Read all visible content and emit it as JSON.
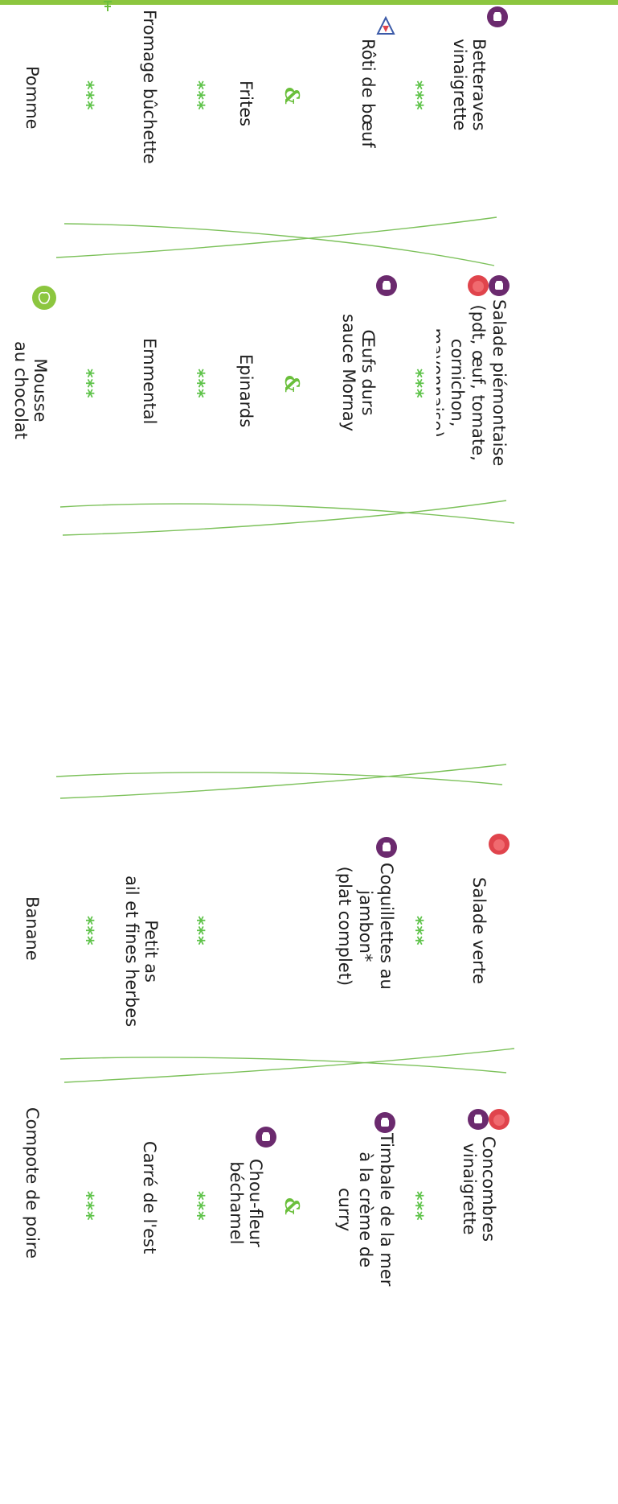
{
  "colors": {
    "accent_green": "#8cc63f",
    "star_green": "#5fc34a",
    "icon_purple": "#6b2a6e",
    "icon_red": "#e0444c",
    "separator_green": "#7cc15a"
  },
  "icons": [
    "chef-hat-icon",
    "tomato-icon",
    "flag-icon",
    "apple-icon"
  ],
  "separator": "***",
  "ampersand": "&",
  "days": [
    {
      "starter": [
        "Betteraves",
        "vinaigrette"
      ],
      "main": [
        "Rôti de bœuf"
      ],
      "side": [
        "Frites"
      ],
      "dairy": [
        "Fromage bûchette"
      ],
      "dessert": [
        "Pomme"
      ]
    },
    {
      "starter": [
        "Salade piémontaise",
        "(pdt, œuf, tomate,",
        "cornichon,",
        "mayonnaise)"
      ],
      "main": [
        "Œufs durs",
        "sauce Mornay"
      ],
      "side": [
        "Epinards"
      ],
      "dairy": [
        "Emmental"
      ],
      "dessert": [
        "Mousse",
        "au chocolat"
      ]
    },
    {
      "starter": [
        "Salade verte"
      ],
      "main": [
        "Coquillettes au",
        "jambon*",
        "(plat complet)"
      ],
      "dairy": [
        "Petit as",
        "ail et fines herbes"
      ],
      "dessert": [
        "Banane"
      ]
    },
    {
      "starter": [
        "Concombres",
        "vinaigrette"
      ],
      "main": [
        "Timbale de la mer",
        "à la crème de",
        "curry"
      ],
      "side": [
        "Chou-fleur",
        "béchamel"
      ],
      "dairy": [
        "Carré de l'est"
      ],
      "dessert": [
        "Compote de poire"
      ]
    }
  ]
}
